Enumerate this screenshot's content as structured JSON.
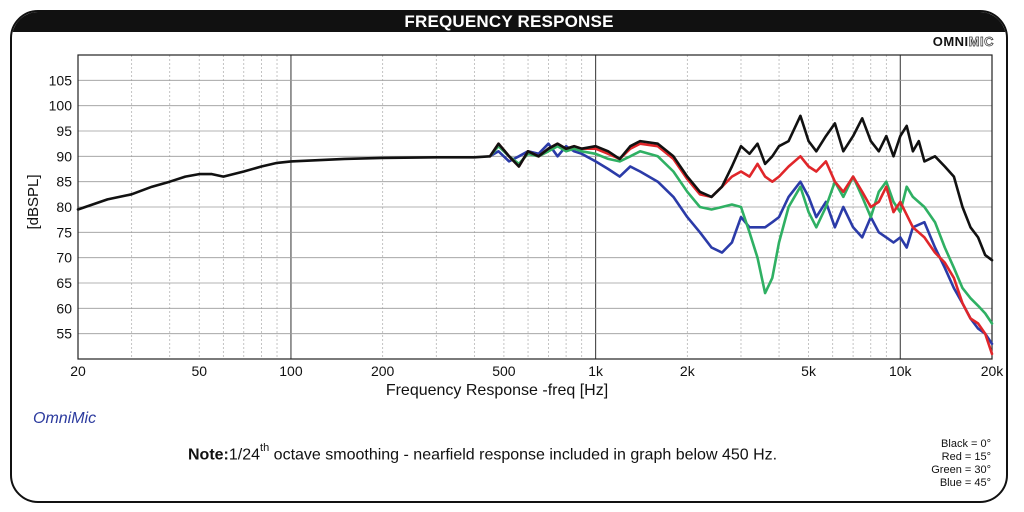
{
  "header": {
    "title": "FREQUENCY RESPONSE"
  },
  "brand": {
    "part1": "OMNI",
    "part2": "MIC"
  },
  "app_name": "OmniMic",
  "note": {
    "label": "Note:",
    "pre": "1/24",
    "sup": "th",
    "post": " octave smoothing - nearfield response included in graph below 450 Hz."
  },
  "legend": [
    "Black = 0°",
    "Red = 15°",
    "Green = 30°",
    "Blue = 45°"
  ],
  "chart_data": {
    "type": "line",
    "title": "FREQUENCY RESPONSE",
    "xlabel": "Frequency Response -freq [Hz]",
    "ylabel": "[dBSPL]",
    "xscale": "log",
    "xlim": [
      20,
      20000
    ],
    "ylim": [
      50,
      110
    ],
    "grid": true,
    "legend_position": "bottom-right",
    "x_ticks": [
      20,
      50,
      100,
      200,
      500,
      1000,
      2000,
      5000,
      10000,
      20000
    ],
    "x_tick_labels": [
      "20",
      "50",
      "100",
      "200",
      "500",
      "1k",
      "2k",
      "5k",
      "10k",
      "20k"
    ],
    "y_ticks": [
      55,
      60,
      65,
      70,
      75,
      80,
      85,
      90,
      95,
      100,
      105
    ],
    "series": [
      {
        "name": "Black = 0°",
        "color": "#111111",
        "points": [
          [
            20,
            79.5
          ],
          [
            25,
            81.5
          ],
          [
            30,
            82.5
          ],
          [
            35,
            84
          ],
          [
            40,
            85
          ],
          [
            45,
            86
          ],
          [
            50,
            86.5
          ],
          [
            55,
            86.5
          ],
          [
            60,
            86
          ],
          [
            70,
            87
          ],
          [
            80,
            88
          ],
          [
            90,
            88.7
          ],
          [
            100,
            89
          ],
          [
            150,
            89.5
          ],
          [
            200,
            89.7
          ],
          [
            300,
            89.8
          ],
          [
            400,
            89.8
          ],
          [
            450,
            90
          ],
          [
            480,
            92.5
          ],
          [
            520,
            90
          ],
          [
            560,
            88
          ],
          [
            600,
            91
          ],
          [
            650,
            90
          ],
          [
            700,
            91.5
          ],
          [
            750,
            92.5
          ],
          [
            800,
            91.5
          ],
          [
            850,
            92
          ],
          [
            900,
            91.5
          ],
          [
            1000,
            92
          ],
          [
            1100,
            91
          ],
          [
            1200,
            89.5
          ],
          [
            1300,
            92
          ],
          [
            1400,
            93
          ],
          [
            1600,
            92.5
          ],
          [
            1800,
            90
          ],
          [
            2000,
            86
          ],
          [
            2200,
            83
          ],
          [
            2400,
            82
          ],
          [
            2600,
            84
          ],
          [
            2800,
            88
          ],
          [
            3000,
            92
          ],
          [
            3200,
            90.5
          ],
          [
            3400,
            92.5
          ],
          [
            3600,
            88.5
          ],
          [
            3800,
            90
          ],
          [
            4000,
            92
          ],
          [
            4300,
            93
          ],
          [
            4700,
            98
          ],
          [
            5000,
            93
          ],
          [
            5300,
            91
          ],
          [
            5700,
            94
          ],
          [
            6100,
            96.5
          ],
          [
            6500,
            91
          ],
          [
            7000,
            94
          ],
          [
            7500,
            97.5
          ],
          [
            8000,
            93
          ],
          [
            8500,
            91
          ],
          [
            9000,
            94
          ],
          [
            9500,
            90
          ],
          [
            10000,
            94
          ],
          [
            10500,
            96
          ],
          [
            11000,
            91
          ],
          [
            11500,
            93
          ],
          [
            12000,
            89
          ],
          [
            13000,
            90
          ],
          [
            14000,
            88
          ],
          [
            15000,
            86
          ],
          [
            16000,
            80
          ],
          [
            17000,
            76
          ],
          [
            18000,
            74
          ],
          [
            19000,
            70.5
          ],
          [
            20000,
            69.5
          ]
        ]
      },
      {
        "name": "Red = 15°",
        "color": "#e0262a",
        "points": [
          [
            450,
            90
          ],
          [
            480,
            92.5
          ],
          [
            520,
            90
          ],
          [
            560,
            88
          ],
          [
            600,
            91
          ],
          [
            650,
            90
          ],
          [
            700,
            91.5
          ],
          [
            750,
            92.5
          ],
          [
            800,
            91.5
          ],
          [
            850,
            92
          ],
          [
            900,
            91.5
          ],
          [
            1000,
            91.5
          ],
          [
            1100,
            90.5
          ],
          [
            1200,
            89.5
          ],
          [
            1300,
            91.5
          ],
          [
            1400,
            92.5
          ],
          [
            1600,
            92
          ],
          [
            1800,
            89.5
          ],
          [
            2000,
            85.5
          ],
          [
            2200,
            82.5
          ],
          [
            2400,
            82
          ],
          [
            2600,
            84
          ],
          [
            2800,
            86
          ],
          [
            3000,
            87
          ],
          [
            3200,
            86
          ],
          [
            3400,
            88.5
          ],
          [
            3600,
            86
          ],
          [
            3800,
            85
          ],
          [
            4000,
            86
          ],
          [
            4300,
            88
          ],
          [
            4700,
            90
          ],
          [
            5000,
            88
          ],
          [
            5300,
            87
          ],
          [
            5700,
            89
          ],
          [
            6100,
            85
          ],
          [
            6500,
            83
          ],
          [
            7000,
            86
          ],
          [
            7500,
            83
          ],
          [
            8000,
            80
          ],
          [
            8500,
            81
          ],
          [
            9000,
            84
          ],
          [
            9500,
            79
          ],
          [
            10000,
            81
          ],
          [
            11000,
            76
          ],
          [
            12000,
            74
          ],
          [
            13000,
            71
          ],
          [
            14000,
            69
          ],
          [
            15000,
            66
          ],
          [
            16000,
            61
          ],
          [
            17000,
            58
          ],
          [
            18000,
            57
          ],
          [
            19000,
            55
          ],
          [
            20000,
            51
          ]
        ]
      },
      {
        "name": "Green = 30°",
        "color": "#2fb063",
        "points": [
          [
            450,
            90
          ],
          [
            480,
            92
          ],
          [
            520,
            90
          ],
          [
            560,
            88.5
          ],
          [
            600,
            90.5
          ],
          [
            650,
            90
          ],
          [
            700,
            91
          ],
          [
            750,
            92
          ],
          [
            800,
            91
          ],
          [
            850,
            91.5
          ],
          [
            900,
            91
          ],
          [
            1000,
            90.5
          ],
          [
            1100,
            89.5
          ],
          [
            1200,
            89
          ],
          [
            1300,
            90
          ],
          [
            1400,
            91
          ],
          [
            1600,
            90
          ],
          [
            1800,
            87
          ],
          [
            2000,
            83
          ],
          [
            2200,
            80
          ],
          [
            2400,
            79.5
          ],
          [
            2600,
            80
          ],
          [
            2800,
            80.5
          ],
          [
            3000,
            80
          ],
          [
            3200,
            75
          ],
          [
            3400,
            70
          ],
          [
            3600,
            63
          ],
          [
            3800,
            66
          ],
          [
            4000,
            73
          ],
          [
            4300,
            80
          ],
          [
            4700,
            84
          ],
          [
            5000,
            79
          ],
          [
            5300,
            76
          ],
          [
            5700,
            80
          ],
          [
            6100,
            85
          ],
          [
            6500,
            82
          ],
          [
            7000,
            86
          ],
          [
            7500,
            82
          ],
          [
            8000,
            78
          ],
          [
            8500,
            83
          ],
          [
            9000,
            85
          ],
          [
            9500,
            81
          ],
          [
            10000,
            79
          ],
          [
            10500,
            84
          ],
          [
            11000,
            82
          ],
          [
            12000,
            80
          ],
          [
            13000,
            77
          ],
          [
            14000,
            72
          ],
          [
            15000,
            68
          ],
          [
            16000,
            64
          ],
          [
            17000,
            62
          ],
          [
            18000,
            60.5
          ],
          [
            19000,
            59
          ],
          [
            20000,
            57
          ]
        ]
      },
      {
        "name": "Blue = 45°",
        "color": "#2b3ba8",
        "points": [
          [
            450,
            90
          ],
          [
            480,
            91
          ],
          [
            520,
            89
          ],
          [
            560,
            90
          ],
          [
            600,
            91
          ],
          [
            650,
            90.5
          ],
          [
            700,
            92.5
          ],
          [
            750,
            90
          ],
          [
            800,
            92
          ],
          [
            850,
            91
          ],
          [
            900,
            90.5
          ],
          [
            1000,
            89
          ],
          [
            1100,
            87.5
          ],
          [
            1200,
            86
          ],
          [
            1300,
            88
          ],
          [
            1400,
            87
          ],
          [
            1600,
            85
          ],
          [
            1800,
            82
          ],
          [
            2000,
            78
          ],
          [
            2200,
            75
          ],
          [
            2400,
            72
          ],
          [
            2600,
            71
          ],
          [
            2800,
            73
          ],
          [
            3000,
            78
          ],
          [
            3200,
            76
          ],
          [
            3400,
            76
          ],
          [
            3600,
            76
          ],
          [
            3800,
            77
          ],
          [
            4000,
            78
          ],
          [
            4300,
            82
          ],
          [
            4700,
            85
          ],
          [
            5000,
            82
          ],
          [
            5300,
            78
          ],
          [
            5700,
            81
          ],
          [
            6100,
            76
          ],
          [
            6500,
            80
          ],
          [
            7000,
            76
          ],
          [
            7500,
            74
          ],
          [
            8000,
            78
          ],
          [
            8500,
            75
          ],
          [
            9000,
            74
          ],
          [
            9500,
            73
          ],
          [
            10000,
            74
          ],
          [
            10500,
            72
          ],
          [
            11000,
            76
          ],
          [
            12000,
            77
          ],
          [
            13000,
            72
          ],
          [
            14000,
            68
          ],
          [
            15000,
            64
          ],
          [
            16000,
            61
          ],
          [
            17000,
            58
          ],
          [
            18000,
            56
          ],
          [
            19000,
            55
          ],
          [
            20000,
            53
          ]
        ]
      }
    ]
  }
}
